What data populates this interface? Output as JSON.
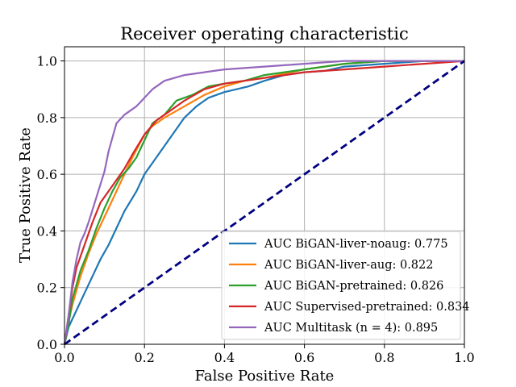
{
  "chart_data": {
    "type": "line",
    "title": "Receiver operating characteristic",
    "xlabel": "False Positive Rate",
    "ylabel": "True Positive Rate",
    "xlim": [
      0.0,
      1.0
    ],
    "ylim": [
      0.0,
      1.05
    ],
    "xticks": [
      "0.0",
      "0.2",
      "0.4",
      "0.6",
      "0.8",
      "1.0"
    ],
    "yticks": [
      "0.0",
      "0.2",
      "0.4",
      "0.6",
      "0.8",
      "1.0"
    ],
    "grid": true,
    "legend_position": "lower-right",
    "series": [
      {
        "name": "AUC BiGAN-liver-noaug: 0.775",
        "color": "#1f77b4",
        "x": [
          0,
          0.01,
          0.03,
          0.05,
          0.07,
          0.09,
          0.11,
          0.13,
          0.15,
          0.18,
          0.2,
          0.22,
          0.25,
          0.28,
          0.3,
          0.33,
          0.36,
          0.4,
          0.43,
          0.46,
          0.5,
          0.55,
          0.6,
          0.65,
          0.7,
          0.8,
          0.9,
          1.0
        ],
        "y": [
          0,
          0.06,
          0.12,
          0.18,
          0.24,
          0.3,
          0.35,
          0.41,
          0.47,
          0.54,
          0.6,
          0.64,
          0.7,
          0.76,
          0.8,
          0.84,
          0.87,
          0.89,
          0.9,
          0.91,
          0.93,
          0.95,
          0.96,
          0.965,
          0.98,
          0.99,
          1.0,
          1.0
        ]
      },
      {
        "name": "AUC BiGAN-liver-aug: 0.822",
        "color": "#ff7f0e",
        "x": [
          0,
          0.01,
          0.02,
          0.04,
          0.06,
          0.08,
          0.1,
          0.12,
          0.14,
          0.17,
          0.2,
          0.22,
          0.25,
          0.3,
          0.35,
          0.4,
          0.45,
          0.5,
          0.6,
          0.7,
          0.8,
          0.9,
          1.0
        ],
        "y": [
          0,
          0.08,
          0.14,
          0.24,
          0.32,
          0.39,
          0.45,
          0.51,
          0.57,
          0.66,
          0.74,
          0.77,
          0.8,
          0.84,
          0.88,
          0.91,
          0.93,
          0.94,
          0.97,
          0.99,
          1.0,
          1.0,
          1.0
        ]
      },
      {
        "name": "AUC BiGAN-pretrained: 0.826",
        "color": "#2ca02c",
        "x": [
          0,
          0.01,
          0.02,
          0.04,
          0.06,
          0.08,
          0.1,
          0.12,
          0.14,
          0.16,
          0.18,
          0.2,
          0.22,
          0.25,
          0.28,
          0.32,
          0.36,
          0.4,
          0.45,
          0.5,
          0.6,
          0.7,
          0.8,
          1.0
        ],
        "y": [
          0,
          0.07,
          0.16,
          0.26,
          0.33,
          0.41,
          0.48,
          0.54,
          0.59,
          0.62,
          0.66,
          0.72,
          0.78,
          0.81,
          0.86,
          0.88,
          0.91,
          0.92,
          0.93,
          0.95,
          0.97,
          0.99,
          1.0,
          1.0
        ]
      },
      {
        "name": "AUC Supervised-pretrained: 0.834",
        "color": "#d62728",
        "x": [
          0,
          0.01,
          0.02,
          0.03,
          0.05,
          0.07,
          0.09,
          0.11,
          0.13,
          0.15,
          0.17,
          0.2,
          0.23,
          0.26,
          0.3,
          0.35,
          0.4,
          0.45,
          0.5,
          0.6,
          0.7,
          0.8,
          0.9,
          1.0
        ],
        "y": [
          0,
          0.1,
          0.2,
          0.27,
          0.35,
          0.43,
          0.5,
          0.54,
          0.58,
          0.62,
          0.67,
          0.74,
          0.79,
          0.82,
          0.86,
          0.9,
          0.92,
          0.93,
          0.94,
          0.96,
          0.97,
          0.98,
          0.99,
          1.0
        ]
      },
      {
        "name": "AUC Multitask (n = 4): 0.895",
        "color": "#9467bd",
        "x": [
          0,
          0.01,
          0.02,
          0.03,
          0.04,
          0.05,
          0.06,
          0.08,
          0.1,
          0.11,
          0.12,
          0.13,
          0.15,
          0.18,
          0.2,
          0.22,
          0.25,
          0.3,
          0.35,
          0.4,
          0.5,
          0.6,
          0.7,
          0.8,
          1.0
        ],
        "y": [
          0,
          0.1,
          0.22,
          0.3,
          0.36,
          0.39,
          0.43,
          0.52,
          0.61,
          0.68,
          0.73,
          0.78,
          0.81,
          0.84,
          0.87,
          0.9,
          0.93,
          0.95,
          0.96,
          0.97,
          0.98,
          0.99,
          1.0,
          1.0,
          1.0
        ]
      },
      {
        "name": "",
        "color": "#000080",
        "dashed": true,
        "x": [
          0,
          1.0
        ],
        "y": [
          0,
          1.0
        ]
      }
    ]
  }
}
